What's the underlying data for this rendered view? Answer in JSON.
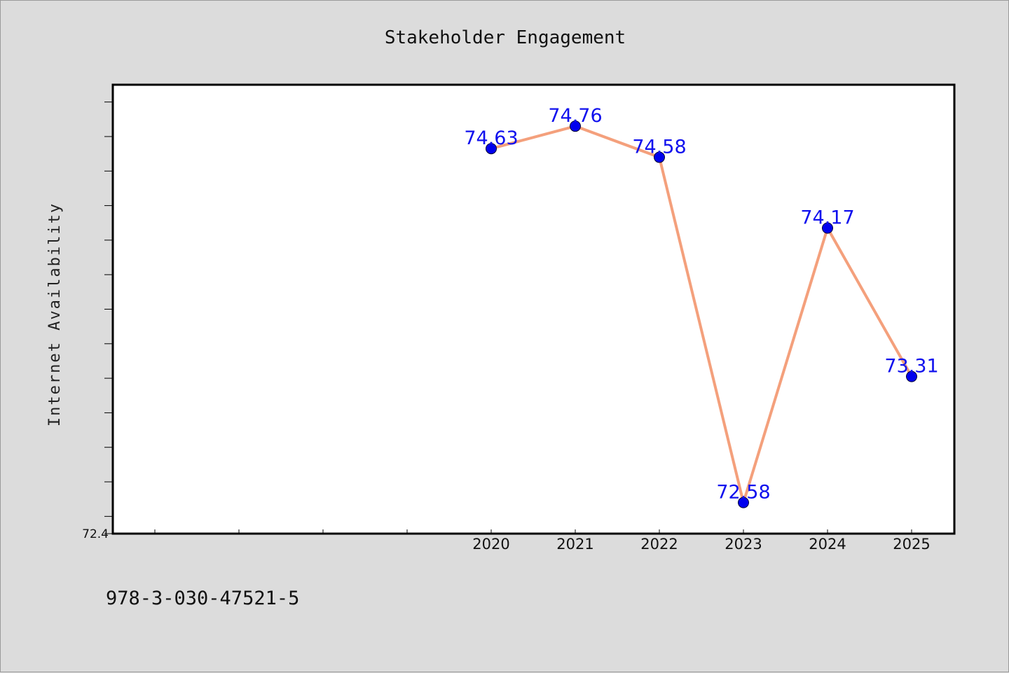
{
  "chart_data": {
    "type": "line",
    "title": "Stakeholder Engagement",
    "xlabel": "",
    "ylabel": "Internet Availability",
    "categories": [
      "2020",
      "2021",
      "2022",
      "2023",
      "2024",
      "2025"
    ],
    "series": [
      {
        "values": [
          74.63,
          74.76,
          74.58,
          72.58,
          74.17,
          73.31
        ]
      }
    ],
    "data_labels": [
      "74.63",
      "74.76",
      "74.58",
      "72.58",
      "74.17",
      "73.31"
    ],
    "ylim": [
      72.4,
      75.0
    ],
    "y_tick_labels": [
      "72.4"
    ],
    "grid": false,
    "legend": "none",
    "colors": {
      "line": "#f4a07c",
      "marker": "#0000ee",
      "data_label": "#1010ee",
      "plot_background": "#ffffff",
      "page_background": "#dcdcdc"
    }
  },
  "footer": {
    "identifier": "978-3-030-47521-5"
  }
}
